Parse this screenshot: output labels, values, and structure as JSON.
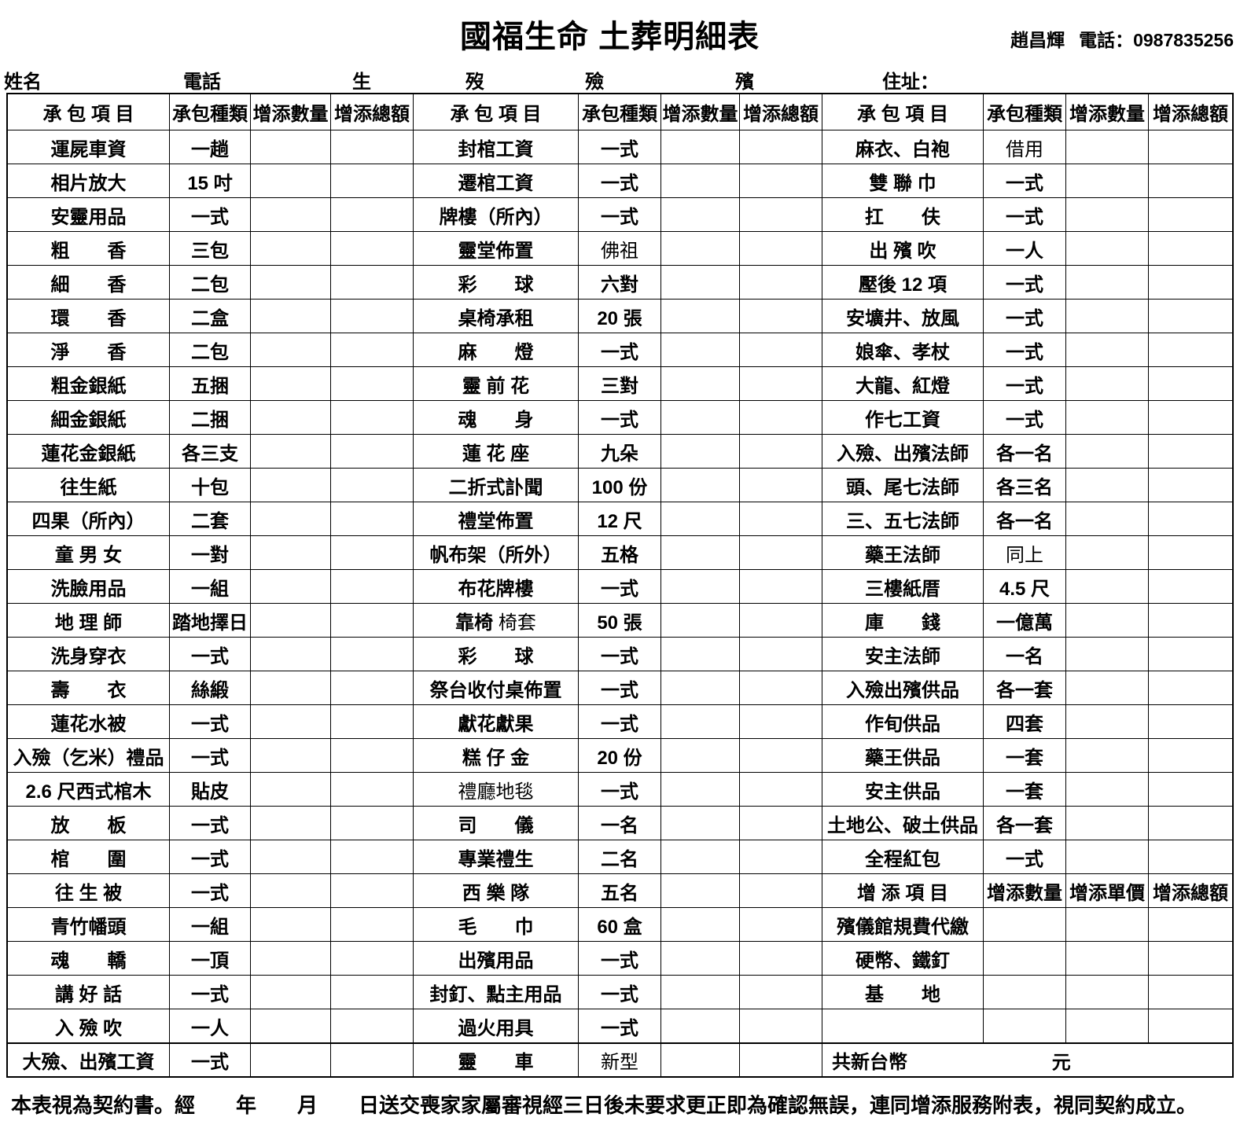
{
  "header": {
    "title": "國福生命 土葬明細表",
    "contact_name": "趙昌輝",
    "contact_phone_label": "電話：",
    "contact_phone": "0987835256"
  },
  "info": {
    "fields": [
      "姓名",
      "電話",
      "生",
      "歿",
      "殮",
      "殯",
      "住址："
    ]
  },
  "table": {
    "column_headers": [
      "承 包 項 目",
      "承包種類",
      "增添數量",
      "增添總額"
    ],
    "addon_headers": [
      "增 添 項 目",
      "增添數量",
      "增添單價",
      "增添總額"
    ],
    "groups": [
      {
        "rows": [
          {
            "item": "運屍車資",
            "kind": "一趟"
          },
          {
            "item": "相片放大",
            "kind": "15 吋"
          },
          {
            "item": "安靈用品",
            "kind": "一式"
          },
          {
            "item": "粗　　香",
            "kind": "三包"
          },
          {
            "item": "細　　香",
            "kind": "二包"
          },
          {
            "item": "環　　香",
            "kind": "二盒"
          },
          {
            "item": "淨　　香",
            "kind": "二包"
          },
          {
            "item": "粗金銀紙",
            "kind": "五捆"
          },
          {
            "item": "細金銀紙",
            "kind": "二捆"
          },
          {
            "item": "蓮花金銀紙",
            "kind": "各三支"
          },
          {
            "item": "往生紙",
            "kind": "十包"
          },
          {
            "item": "四果（所內）",
            "kind": "二套"
          },
          {
            "item": "童 男 女",
            "kind": "一對"
          },
          {
            "item": "洗臉用品",
            "kind": "一組"
          },
          {
            "item": "地 理 師",
            "kind": "踏地擇日"
          },
          {
            "item": "洗身穿衣",
            "kind": "一式"
          },
          {
            "item": "壽　　衣",
            "kind": "絲緞"
          },
          {
            "item": "蓮花水被",
            "kind": "一式"
          },
          {
            "item": "入殮（乞米）禮品",
            "kind": "一式"
          },
          {
            "item": "2.6 尺西式棺木",
            "kind": "貼皮"
          },
          {
            "item": "放　　板",
            "kind": "一式"
          },
          {
            "item": "棺　　圍",
            "kind": "一式"
          },
          {
            "item": "往 生 被",
            "kind": "一式"
          },
          {
            "item": "青竹幡頭",
            "kind": "一組"
          },
          {
            "item": "魂　　轎",
            "kind": "一頂"
          },
          {
            "item": "講 好 話",
            "kind": "一式"
          },
          {
            "item": "入 殮 吹",
            "kind": "一人"
          },
          {
            "item": "大殮、出殯工資",
            "kind": "一式"
          }
        ]
      },
      {
        "rows": [
          {
            "item": "封棺工資",
            "kind": "一式"
          },
          {
            "item": "遷棺工資",
            "kind": "一式"
          },
          {
            "item": "牌樓（所內）",
            "kind": "一式"
          },
          {
            "item": "靈堂佈置",
            "kind": "佛祖",
            "kind_light": true
          },
          {
            "item": "彩　　球",
            "kind": "六對"
          },
          {
            "item": "桌椅承租",
            "kind": "20 張"
          },
          {
            "item": "麻　　燈",
            "kind": "一式"
          },
          {
            "item": "靈 前 花",
            "kind": "三對"
          },
          {
            "item": "魂　　身",
            "kind": "一式"
          },
          {
            "item": "蓮 花 座",
            "kind": "九朵"
          },
          {
            "item": "二折式訃聞",
            "kind": "100 份"
          },
          {
            "item": "禮堂佈置",
            "kind": "12 尺"
          },
          {
            "item": "帆布架（所外）",
            "kind": "五格"
          },
          {
            "item": "布花牌樓",
            "kind": "一式"
          },
          {
            "item": "靠椅",
            "item_parts": [
              {
                "text": "靠椅",
                "light": false
              },
              {
                "text": " 椅套",
                "light": true
              }
            ],
            "kind": "50 張"
          },
          {
            "item": "彩　　球",
            "kind": "一式"
          },
          {
            "item": "祭台收付桌佈置",
            "kind": "一式"
          },
          {
            "item": "獻花獻果",
            "kind": "一式"
          },
          {
            "item": "糕 仔 金",
            "kind": "20 份"
          },
          {
            "item": "禮廳地毯",
            "item_light": true,
            "kind": "一式"
          },
          {
            "item": "司　　儀",
            "kind": "一名"
          },
          {
            "item": "專業禮生",
            "kind": "二名"
          },
          {
            "item": "西 樂 隊",
            "kind": "五名"
          },
          {
            "item": "毛　　巾",
            "kind": "60 盒"
          },
          {
            "item": "出殯用品",
            "kind": "一式"
          },
          {
            "item": "封釘、點主用品",
            "kind": "一式"
          },
          {
            "item": "過火用具",
            "kind": "一式"
          },
          {
            "item": "靈　　車",
            "kind": "新型",
            "kind_light": true
          }
        ]
      },
      {
        "rows": [
          {
            "item": "麻衣、白袍",
            "kind": "借用",
            "kind_light": true
          },
          {
            "item": "雙 聯 巾",
            "kind": "一式"
          },
          {
            "item": "扛　　伕",
            "kind": "一式"
          },
          {
            "item": "出 殯 吹",
            "kind": "一人"
          },
          {
            "item": "壓後 12 項",
            "kind": "一式"
          },
          {
            "item": "安壙井、放風",
            "kind": "一式"
          },
          {
            "item": "娘傘、孝杖",
            "kind": "一式"
          },
          {
            "item": "大龍、紅燈",
            "kind": "一式"
          },
          {
            "item": "作七工資",
            "kind": "一式"
          },
          {
            "item": "入殮、出殯法師",
            "kind": "各一名"
          },
          {
            "item": "頭、尾七法師",
            "kind": "各三名"
          },
          {
            "item": "三、五七法師",
            "kind": "各一名"
          },
          {
            "item": "藥王法師",
            "kind": "同上",
            "kind_light": true
          },
          {
            "item": "三樓紙厝",
            "kind": "4.5 尺"
          },
          {
            "item": "庫　　錢",
            "kind": "一億萬"
          },
          {
            "item": "安主法師",
            "kind": "一名"
          },
          {
            "item": "入殮出殯供品",
            "kind": "各一套"
          },
          {
            "item": "作旬供品",
            "kind": "四套"
          },
          {
            "item": "藥王供品",
            "kind": "一套"
          },
          {
            "item": "安主供品",
            "kind": "一套"
          },
          {
            "item": "土地公、破土供品",
            "kind": "各一套"
          },
          {
            "item": "全程紅包",
            "kind": "一式"
          },
          {
            "type": "subheader"
          },
          {
            "item": "殯儀館規費代繳",
            "kind": ""
          },
          {
            "item": "硬幣、鐵釘",
            "kind": ""
          },
          {
            "item": "基　　地",
            "kind": ""
          },
          {
            "item": "",
            "kind": ""
          },
          {
            "type": "merged",
            "left": "共新台幣",
            "right": "元"
          }
        ]
      }
    ]
  },
  "footer": {
    "note": "本表視為契約書。經　　年　　月　　日送交喪家家屬審視經三日後未要求更正即為確認無誤，連同增添服務附表，視同契約成立。"
  },
  "colors": {
    "text": "#000000",
    "border": "#000000",
    "background": "#ffffff"
  }
}
